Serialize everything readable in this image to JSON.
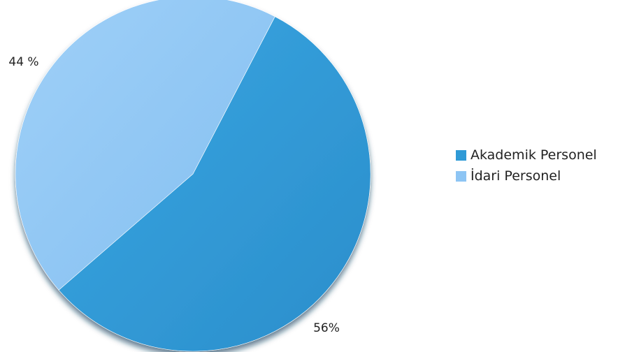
{
  "chart_data": {
    "type": "pie",
    "title": "",
    "series": [
      {
        "values": [
          56,
          44
        ]
      }
    ],
    "slices": [
      {
        "label": "Akademik Personel",
        "value": 56,
        "display": "56%",
        "color": "#2f9ad6"
      },
      {
        "label": "İdari Personel",
        "value": 44,
        "display": "44 %",
        "color": "#8dc5f4"
      }
    ],
    "legend": {
      "position": "right",
      "items": [
        {
          "label": "Akademik Personel",
          "color": "#2f9ad6"
        },
        {
          "label": "İdari Personel",
          "color": "#8dc5f4"
        }
      ]
    }
  }
}
